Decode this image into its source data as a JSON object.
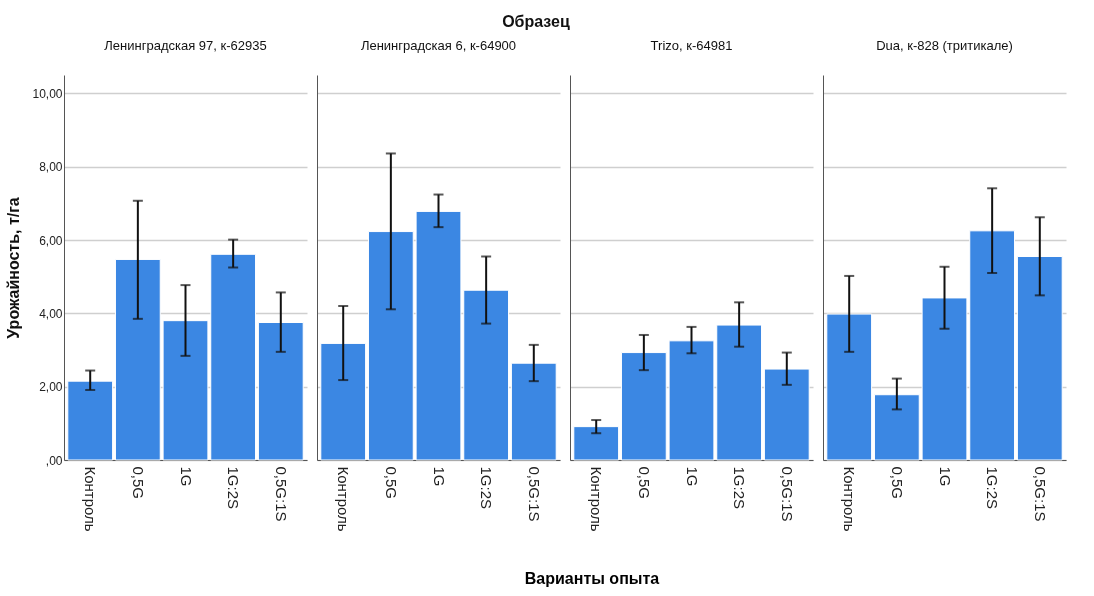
{
  "chart_data": [
    {
      "type": "bar",
      "title": "Ленинградская 97, к-62935",
      "ylabel": "Урожайность, т/га",
      "annotations": [
        "Образец",
        "Варианты опыта"
      ],
      "categories": [
        "Контроль",
        "0,5G",
        "1G",
        "1G:2S",
        "0,5G:1S"
      ],
      "color": "#3b87e3",
      "values": [
        2.15,
        5.47,
        3.8,
        5.61,
        3.75
      ],
      "errors": [
        [
          1.91,
          2.44
        ],
        [
          3.85,
          7.07
        ],
        [
          2.84,
          4.77
        ],
        [
          5.25,
          6.01
        ],
        [
          2.95,
          4.57
        ]
      ],
      "ylim": [
        0,
        10.5
      ],
      "yticks": [
        {
          "value": 0,
          "label": ",00"
        },
        {
          "value": 2,
          "label": "2,00"
        },
        {
          "value": 4,
          "label": "4,00"
        },
        {
          "value": 6,
          "label": "6,00"
        },
        {
          "value": 8,
          "label": "8,00"
        },
        {
          "value": 10,
          "label": "10,00"
        }
      ],
      "grid": "y"
    },
    {
      "type": "bar",
      "title": "Ленинградская 6, к-64900",
      "categories": [
        "Контроль",
        "0,5G",
        "1G",
        "1G:2S",
        "0,5G:1S"
      ],
      "color": "#3b87e3",
      "values": [
        3.18,
        6.23,
        6.78,
        4.63,
        2.64
      ],
      "errors": [
        [
          2.18,
          4.2
        ],
        [
          4.11,
          8.36
        ],
        [
          6.35,
          7.24
        ],
        [
          3.72,
          5.55
        ],
        [
          2.15,
          3.14
        ]
      ],
      "ylim": [
        0,
        10.5
      ],
      "yticks": [
        0,
        2,
        4,
        6,
        8,
        10
      ],
      "grid": "y",
      "tick_labels": "x"
    },
    {
      "type": "bar",
      "title": "Trizo, к-64981",
      "categories": [
        "Контроль",
        "0,5G",
        "1G",
        "1G:2S",
        "0,5G:1S"
      ],
      "color": "#3b87e3",
      "values": [
        0.91,
        2.93,
        3.25,
        3.68,
        2.48
      ],
      "errors": [
        [
          0.73,
          1.09
        ],
        [
          2.45,
          3.41
        ],
        [
          2.91,
          3.63
        ],
        [
          3.09,
          4.3
        ],
        [
          2.05,
          2.93
        ]
      ],
      "ylim": [
        0,
        10.5
      ],
      "yticks": [
        0,
        2,
        4,
        6,
        8,
        10
      ],
      "grid": "y",
      "tick_labels": "x"
    },
    {
      "type": "bar",
      "title": "Dua, к-828 (тритикале)",
      "categories": [
        "Контроль",
        "0,5G",
        "1G",
        "1G:2S",
        "0,5G:1S"
      ],
      "color": "#3b87e3",
      "values": [
        3.98,
        1.78,
        4.42,
        6.25,
        5.55
      ],
      "errors": [
        [
          2.95,
          5.02
        ],
        [
          1.38,
          2.22
        ],
        [
          3.58,
          5.27
        ],
        [
          5.1,
          7.41
        ],
        [
          4.49,
          6.62
        ]
      ],
      "ylim": [
        0,
        10.5
      ],
      "yticks": [
        0,
        2,
        4,
        6,
        8,
        10
      ],
      "grid": "y",
      "tick_labels": "x"
    }
  ]
}
